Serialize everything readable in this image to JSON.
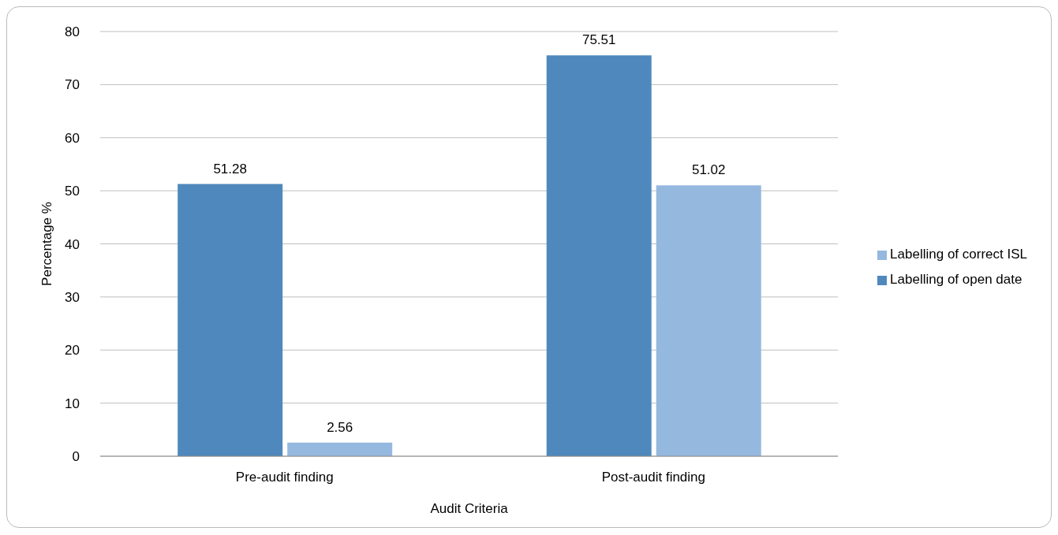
{
  "chart_data": {
    "type": "bar",
    "xlabel": "Audit Criteria",
    "ylabel": "Percentage %",
    "categories": [
      "Pre-audit finding",
      "Post-audit finding"
    ],
    "series": [
      {
        "name": "Labelling of open date",
        "color": "#4f88bc",
        "values": [
          51.28,
          75.51
        ]
      },
      {
        "name": "Labelling of correct ISL",
        "color": "#95b8df",
        "values": [
          2.56,
          51.02
        ]
      }
    ],
    "ylim": [
      0,
      80
    ],
    "yticks": [
      0,
      10,
      20,
      30,
      40,
      50,
      60,
      70,
      80
    ],
    "grid": "y",
    "legend": "right",
    "data_labels": true
  }
}
